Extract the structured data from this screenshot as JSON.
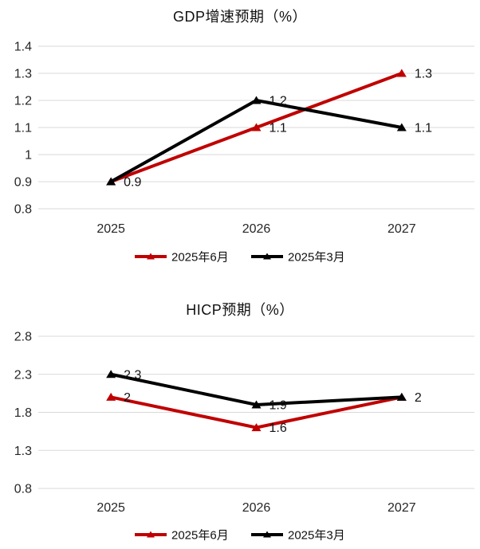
{
  "colors": {
    "grid": "#d9d9d9",
    "axis_text": "#262626",
    "label_text": "#111111",
    "series_red": "#c00000",
    "series_black": "#000000",
    "background": "#ffffff"
  },
  "chart_data": [
    {
      "type": "line",
      "title": "GDP增速预期（%）",
      "categories": [
        "2025",
        "2026",
        "2027"
      ],
      "series": [
        {
          "name": "2025年6月",
          "color": "#c00000",
          "values": [
            0.9,
            1.1,
            1.3
          ],
          "point_labels": [
            "0.9",
            "1.1",
            "1.3"
          ]
        },
        {
          "name": "2025年3月",
          "color": "#000000",
          "values": [
            0.9,
            1.2,
            1.1
          ],
          "point_labels": [
            "",
            "1.2",
            "1.1"
          ]
        }
      ],
      "ylim": [
        0.8,
        1.4
      ],
      "yticks": [
        "1.4",
        "1.3",
        "1.2",
        "1.1",
        "1",
        "0.9",
        "0.8"
      ],
      "grid": true,
      "marker": "triangle",
      "legend_position": "bottom"
    },
    {
      "type": "line",
      "title": "HICP预期（%）",
      "categories": [
        "2025",
        "2026",
        "2027"
      ],
      "series": [
        {
          "name": "2025年6月",
          "color": "#c00000",
          "values": [
            2,
            1.6,
            2
          ],
          "point_labels": [
            "2",
            "1.6",
            ""
          ]
        },
        {
          "name": "2025年3月",
          "color": "#000000",
          "values": [
            2.3,
            1.9,
            2
          ],
          "point_labels": [
            "2.3",
            "1.9",
            "2"
          ]
        }
      ],
      "ylim": [
        0.8,
        2.8
      ],
      "yticks": [
        "2.8",
        "2.3",
        "1.8",
        "1.3",
        "0.8"
      ],
      "grid": true,
      "marker": "triangle",
      "legend_position": "bottom"
    }
  ]
}
